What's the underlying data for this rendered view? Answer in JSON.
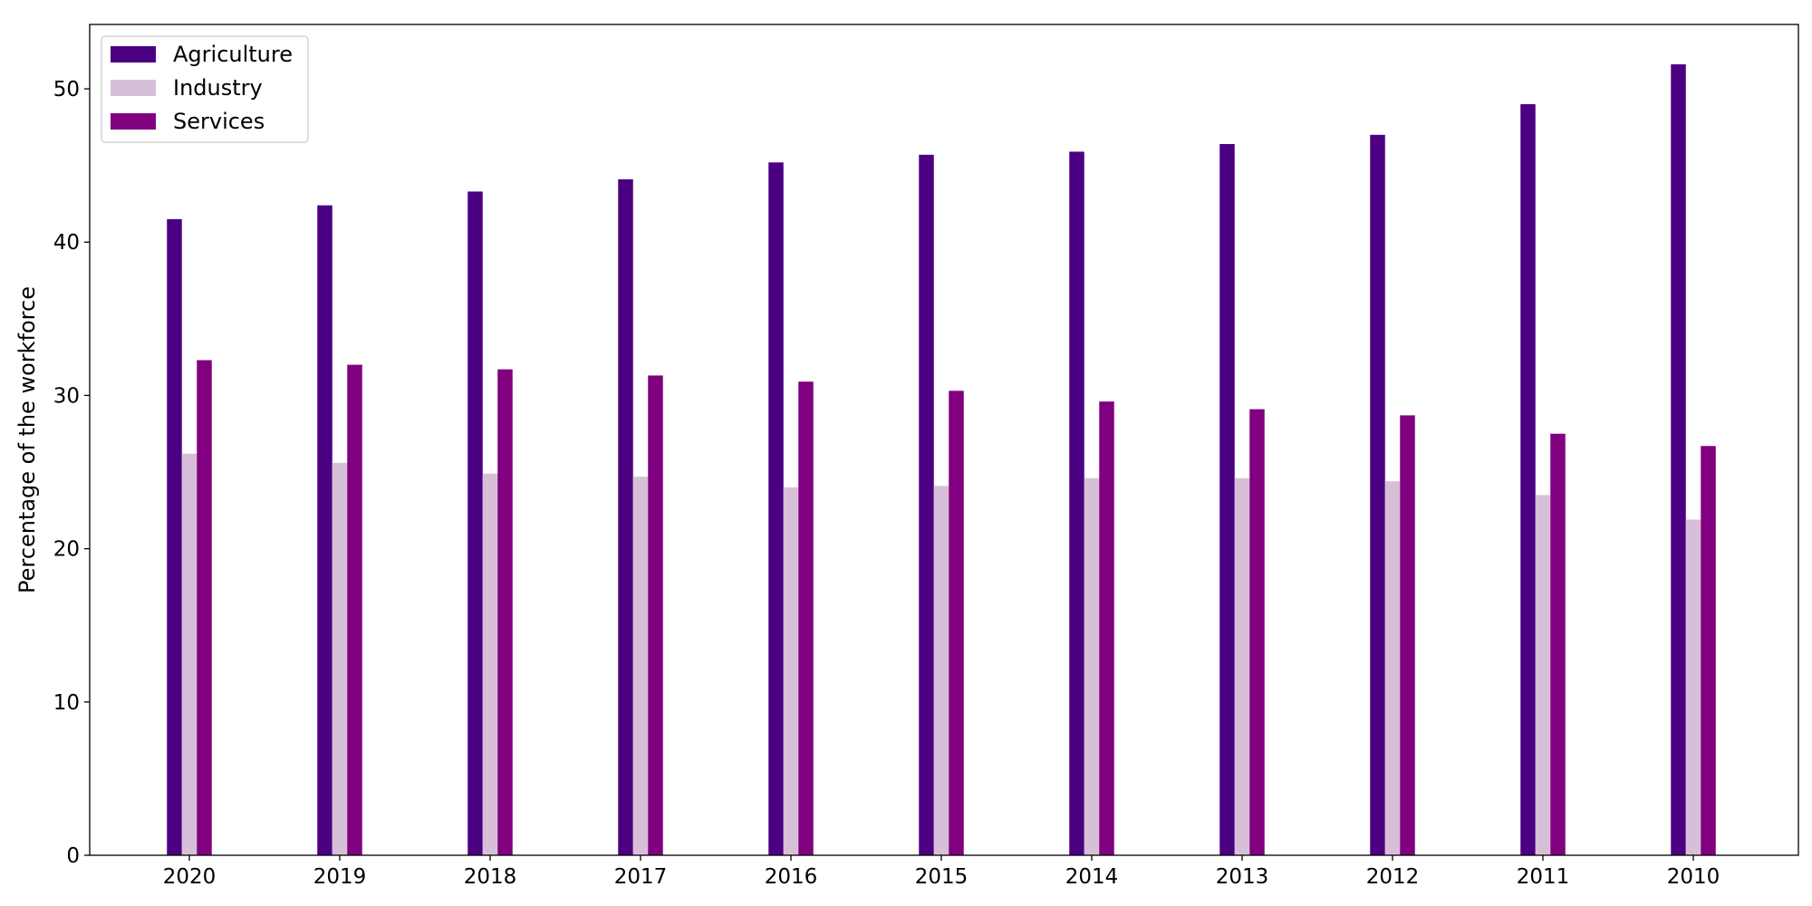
{
  "chart_data": {
    "type": "bar",
    "categories": [
      "2020",
      "2019",
      "2018",
      "2017",
      "2016",
      "2015",
      "2014",
      "2013",
      "2012",
      "2011",
      "2010"
    ],
    "series": [
      {
        "name": "Agriculture",
        "color": "#4b0082",
        "values": [
          41.5,
          42.4,
          43.3,
          44.1,
          45.2,
          45.7,
          45.9,
          46.4,
          47.0,
          49.0,
          51.6
        ]
      },
      {
        "name": "Industry",
        "color": "#d8bfd8",
        "values": [
          26.2,
          25.6,
          24.9,
          24.7,
          24.0,
          24.1,
          24.6,
          24.6,
          24.4,
          23.5,
          21.9
        ]
      },
      {
        "name": "Services",
        "color": "#800080",
        "values": [
          32.3,
          32.0,
          31.7,
          31.3,
          30.9,
          30.3,
          29.6,
          29.1,
          28.7,
          27.5,
          26.7
        ]
      }
    ],
    "title": "",
    "xlabel": "",
    "ylabel": "Percentage of the workforce",
    "ylim": [
      0,
      54.2
    ],
    "yticks": [
      0,
      10,
      20,
      30,
      40,
      50
    ],
    "grid": false,
    "legend_position": "top-left"
  }
}
